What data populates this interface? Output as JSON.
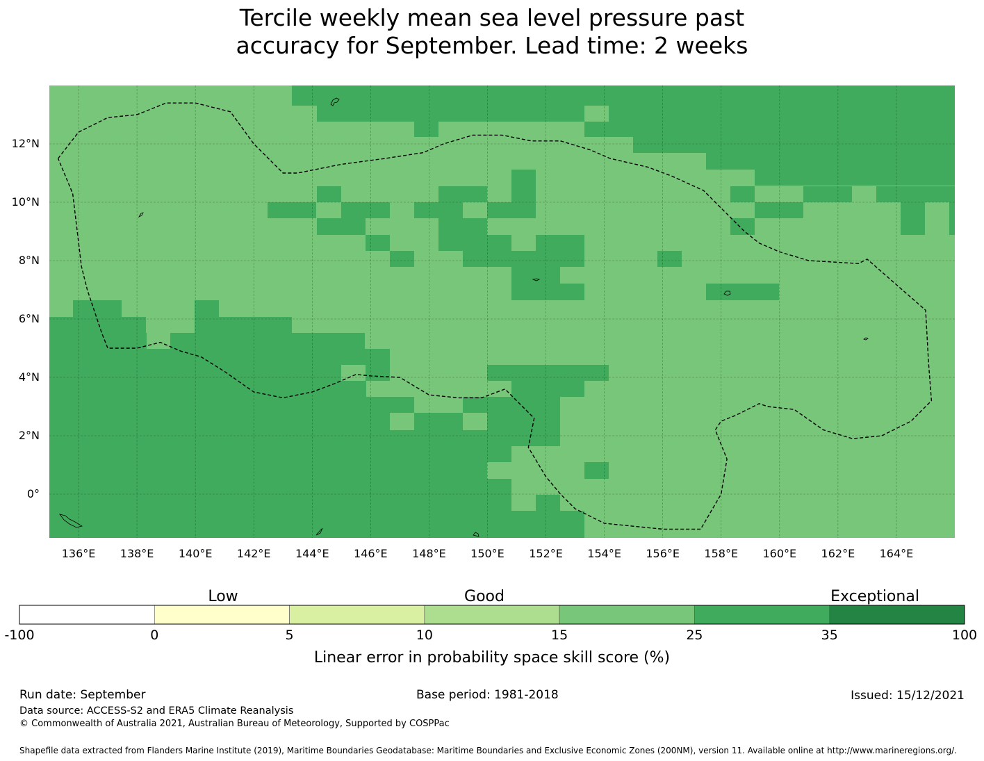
{
  "title": {
    "line1": "Tercile weekly mean sea level pressure past",
    "line2": "accuracy for September. Lead time: 2 weeks"
  },
  "map": {
    "lon_range": [
      135,
      166
    ],
    "lat_range": [
      -1.5,
      14
    ],
    "lon_ticks": [
      {
        "value": 136,
        "label": "136°E"
      },
      {
        "value": 138,
        "label": "138°E"
      },
      {
        "value": 140,
        "label": "140°E"
      },
      {
        "value": 142,
        "label": "142°E"
      },
      {
        "value": 144,
        "label": "144°E"
      },
      {
        "value": 146,
        "label": "146°E"
      },
      {
        "value": 148,
        "label": "148°E"
      },
      {
        "value": 150,
        "label": "150°E"
      },
      {
        "value": 152,
        "label": "152°E"
      },
      {
        "value": 154,
        "label": "154°E"
      },
      {
        "value": 156,
        "label": "156°E"
      },
      {
        "value": 158,
        "label": "158°E"
      },
      {
        "value": 160,
        "label": "160°E"
      },
      {
        "value": 162,
        "label": "162°E"
      },
      {
        "value": 164,
        "label": "164°E"
      }
    ],
    "lat_ticks": [
      {
        "value": 12,
        "label": "12°N"
      },
      {
        "value": 10,
        "label": "10°N"
      },
      {
        "value": 8,
        "label": "8°N"
      },
      {
        "value": 6,
        "label": "6°N"
      },
      {
        "value": 4,
        "label": "4°N"
      },
      {
        "value": 2,
        "label": "2°N"
      },
      {
        "value": 0,
        "label": "0°"
      }
    ],
    "colors": {
      "band_15_25": "#78c679",
      "band_25_35": "#41ab5d",
      "boundary": "#000000"
    },
    "eez_boundary": [
      [
        135.3,
        11.5
      ],
      [
        136.0,
        12.4
      ],
      [
        137.0,
        12.9
      ],
      [
        138.0,
        13.0
      ],
      [
        139.0,
        13.4
      ],
      [
        140.0,
        13.4
      ],
      [
        141.2,
        13.1
      ],
      [
        142.0,
        12.0
      ],
      [
        143.0,
        11.0
      ],
      [
        143.5,
        11.0
      ],
      [
        145.0,
        11.3
      ],
      [
        146.5,
        11.5
      ],
      [
        147.8,
        11.7
      ],
      [
        148.5,
        12.0
      ],
      [
        149.5,
        12.3
      ],
      [
        150.5,
        12.3
      ],
      [
        151.5,
        12.1
      ],
      [
        152.5,
        12.1
      ],
      [
        153.5,
        11.8
      ],
      [
        154.2,
        11.5
      ],
      [
        155.5,
        11.2
      ],
      [
        156.3,
        10.9
      ],
      [
        157.4,
        10.4
      ],
      [
        158.0,
        9.8
      ],
      [
        158.8,
        9.0
      ],
      [
        159.3,
        8.6
      ],
      [
        160.0,
        8.3
      ],
      [
        161.0,
        8.0
      ],
      [
        162.7,
        7.9
      ],
      [
        163.0,
        8.05
      ],
      [
        165.0,
        6.3
      ],
      [
        165.1,
        4.5
      ],
      [
        165.2,
        3.2
      ],
      [
        164.5,
        2.5
      ],
      [
        163.5,
        2.0
      ],
      [
        162.5,
        1.9
      ],
      [
        161.5,
        2.2
      ],
      [
        160.5,
        2.9
      ],
      [
        159.6,
        3.0
      ],
      [
        159.3,
        3.1
      ],
      [
        158.5,
        2.7
      ],
      [
        158.0,
        2.5
      ],
      [
        157.8,
        2.2
      ],
      [
        158.2,
        1.2
      ],
      [
        158.0,
        0.0
      ],
      [
        157.3,
        -1.2
      ],
      [
        156.0,
        -1.2
      ],
      [
        154.0,
        -1.0
      ],
      [
        153.0,
        -0.5
      ],
      [
        152.5,
        0.0
      ],
      [
        152.0,
        0.6
      ],
      [
        151.4,
        1.6
      ],
      [
        151.6,
        2.6
      ],
      [
        151.0,
        3.2
      ],
      [
        150.6,
        3.6
      ],
      [
        149.8,
        3.3
      ],
      [
        149.0,
        3.3
      ],
      [
        148.0,
        3.4
      ],
      [
        147.0,
        4.0
      ],
      [
        146.0,
        4.05
      ],
      [
        145.5,
        4.1
      ],
      [
        144.8,
        3.8
      ],
      [
        144.0,
        3.5
      ],
      [
        143.0,
        3.3
      ],
      [
        142.0,
        3.5
      ],
      [
        141.0,
        4.2
      ],
      [
        140.2,
        4.7
      ],
      [
        139.5,
        4.9
      ],
      [
        138.8,
        5.2
      ],
      [
        138.0,
        5.0
      ],
      [
        137.0,
        5.0
      ],
      [
        136.8,
        5.5
      ],
      [
        136.3,
        7.0
      ],
      [
        136.1,
        7.8
      ],
      [
        135.8,
        10.3
      ],
      [
        135.3,
        11.5
      ]
    ]
  },
  "legend": {
    "categories": {
      "low": "Low",
      "good": "Good",
      "exceptional": "Exceptional"
    },
    "bins": [
      {
        "from": -100,
        "to": 0,
        "color": "#ffffff"
      },
      {
        "from": 0,
        "to": 5,
        "color": "#ffffcc"
      },
      {
        "from": 5,
        "to": 10,
        "color": "#d9f0a3"
      },
      {
        "from": 10,
        "to": 15,
        "color": "#addd8e"
      },
      {
        "from": 15,
        "to": 25,
        "color": "#78c679"
      },
      {
        "from": 25,
        "to": 35,
        "color": "#41ab5d"
      },
      {
        "from": 35,
        "to": 100,
        "color": "#238443"
      }
    ],
    "tick_labels": [
      "-100",
      "0",
      "5",
      "10",
      "15",
      "25",
      "35",
      "100"
    ],
    "label": "Linear error in probability space skill score (%)"
  },
  "footer": {
    "run_date": "Run date: September",
    "base_period": "Base period: 1981-2018",
    "issued": "Issued: 15/12/2021",
    "data_source": "Data source: ACCESS-S2 and ERA5 Climate Reanalysis",
    "copyright": "© Commonwealth of Australia 2021, Australian Bureau of Meteorology, Supported by COSPPac",
    "shapefile": "Shapefile data extracted from Flanders Marine Institute (2019), Maritime Boundaries Geodatabase: Maritime Boundaries and Exclusive Economic Zones (200NM), version 11. Available online at http://www.marineregions.org/."
  }
}
